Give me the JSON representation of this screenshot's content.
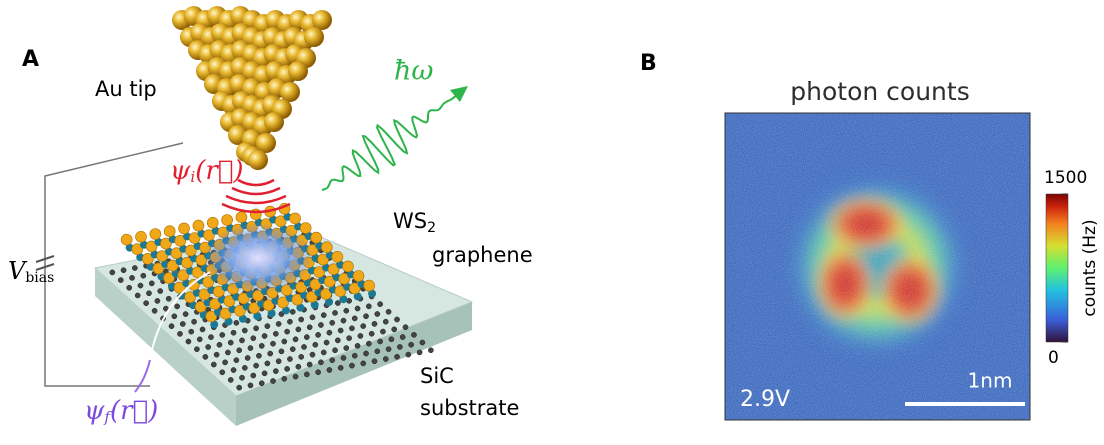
{
  "panel_a": {
    "label": "A",
    "tip": "Au tip",
    "psi_i": {
      "symbol": "ψ",
      "subscript": "i",
      "argument": "(r⃗)"
    },
    "photon": "ħω",
    "ws2": {
      "text": "WS",
      "subscript": "2"
    },
    "graphene": "graphene",
    "vbias": {
      "symbol": "V",
      "subscript": "bias"
    },
    "psi_f": {
      "symbol": "ψ",
      "subscript": "f",
      "argument": "(r⃗)"
    },
    "substrate": [
      "SiC",
      "substrate"
    ]
  },
  "panel_b": {
    "label": "B",
    "title": "photon counts",
    "colorbar": {
      "range": [
        0,
        1500
      ],
      "ticks": [
        0,
        1500
      ],
      "label": "counts (Hz)"
    },
    "voltage": "2.9V",
    "scale_bar": "1nm"
  }
}
